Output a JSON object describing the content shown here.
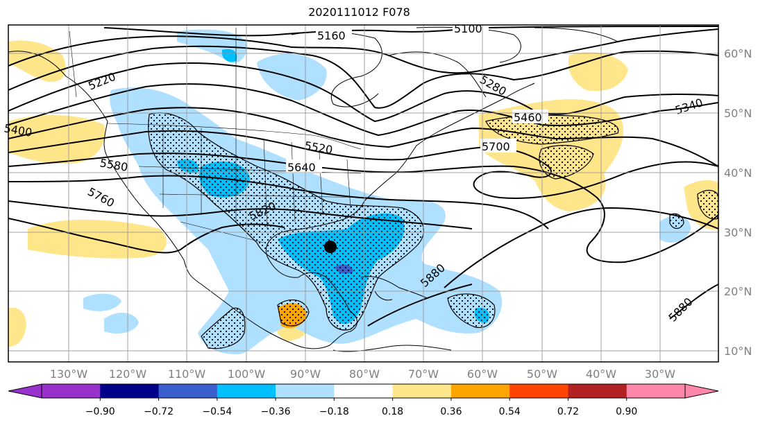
{
  "title": "2020111012 F078",
  "lat_labels": [
    "60°N",
    "50°N",
    "40°N",
    "30°N",
    "20°N",
    "10°N"
  ],
  "lon_labels": [
    "130°W",
    "120°W",
    "110°W",
    "100°W",
    "90°W",
    "80°W",
    "70°W",
    "60°W",
    "50°W",
    "40°W",
    "30°W"
  ],
  "contour_labels": [
    "5160",
    "5100",
    "5220",
    "5280",
    "5340",
    "5400",
    "5460",
    "5520",
    "5580",
    "5640",
    "5700",
    "5760",
    "5820",
    "5880",
    "5880"
  ],
  "colorbar": {
    "ticks": [
      "−0.90",
      "−0.72",
      "−0.54",
      "−0.36",
      "−0.18",
      "0.18",
      "0.36",
      "0.54",
      "0.72",
      "0.90"
    ],
    "colors": [
      "#9932cc",
      "#00008b",
      "#3a5fcd",
      "#00bfff",
      "#b0e0ff",
      "#ffffff",
      "#ffe68a",
      "#ffa500",
      "#ff4500",
      "#b22222",
      "#ff88aa"
    ],
    "extend_min_color": "#9932cc",
    "extend_max_color": "#ff88aa"
  },
  "fill_colors": {
    "light_blue": "#b0e0ff",
    "medium_blue": "#00bfff",
    "dark_blue": "#3a5fcd",
    "yellow": "#ffe68a",
    "orange": "#ffa500"
  },
  "marker": "storm-center-dot"
}
